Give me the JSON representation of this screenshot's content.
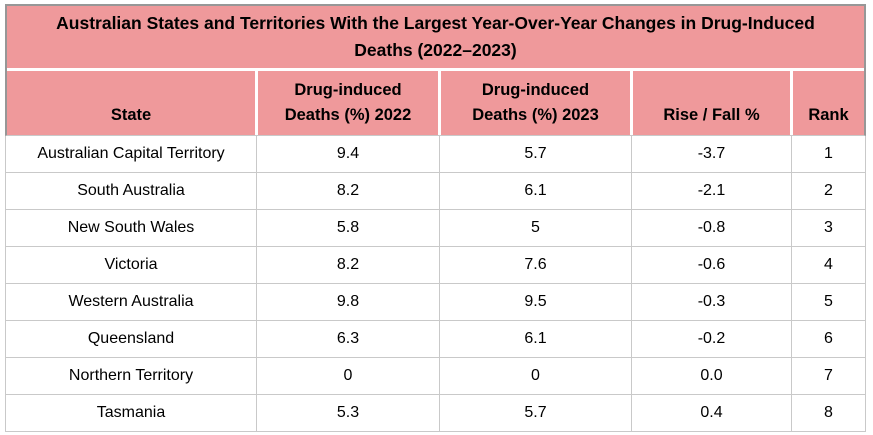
{
  "title": "Australian States and Territories With the Largest Year-Over-Year Changes in Drug-Induced Deaths (2022–2023)",
  "chart_data": {
    "type": "table",
    "title": "Australian States and Territories With the Largest Year-Over-Year Changes in Drug-Induced Deaths (2022–2023)",
    "columns": [
      "State",
      "Drug-induced Deaths (%) 2022",
      "Drug-induced Deaths (%) 2023",
      "Rise / Fall %",
      "Rank"
    ],
    "rows": [
      [
        "Australian Capital Territory",
        "9.4",
        "5.7",
        "-3.7",
        "1"
      ],
      [
        "South Australia",
        "8.2",
        "6.1",
        "-2.1",
        "2"
      ],
      [
        "New South Wales",
        "5.8",
        "5",
        "-0.8",
        "3"
      ],
      [
        "Victoria",
        "8.2",
        "7.6",
        "-0.6",
        "4"
      ],
      [
        "Western Australia",
        "9.8",
        "9.5",
        "-0.3",
        "5"
      ],
      [
        "Queensland",
        "6.3",
        "6.1",
        "-0.2",
        "6"
      ],
      [
        "Northern Territory",
        "0",
        "0",
        "0.0",
        "7"
      ],
      [
        "Tasmania",
        "5.3",
        "5.7",
        "0.4",
        "8"
      ]
    ]
  },
  "colors": {
    "header_bg": "#ef999b",
    "grid_border": "#c9c9c9",
    "outer_border": "#979797",
    "text": "#000000"
  }
}
